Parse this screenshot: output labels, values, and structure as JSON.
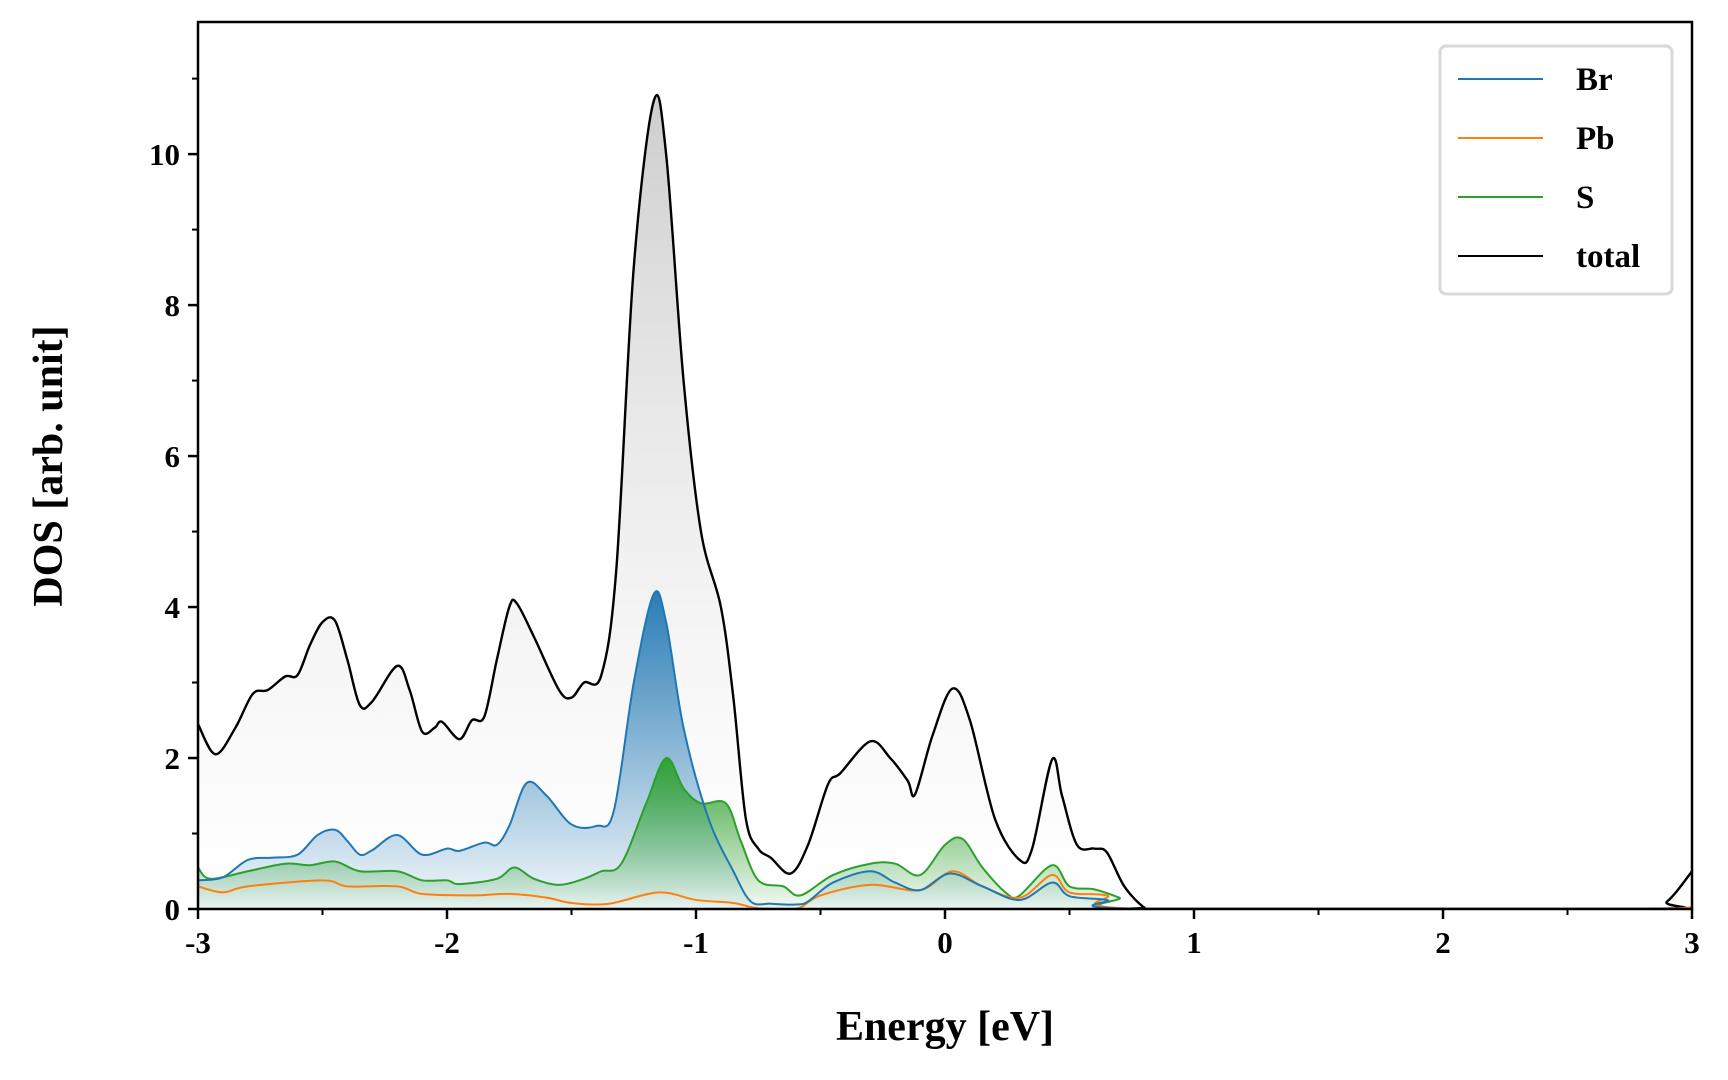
{
  "chart_data": {
    "type": "line",
    "title": "",
    "xlabel": "Energy [eV]",
    "ylabel": "DOS [arb. unit]",
    "xlim": [
      -3,
      3
    ],
    "ylim": [
      0,
      11.75
    ],
    "xticks": [
      -3,
      -2,
      -1,
      0,
      1,
      2,
      3
    ],
    "xtick_labels": [
      "-3",
      "-2",
      "-1",
      "0",
      "1",
      "2",
      "3"
    ],
    "xminor": [
      -2.5,
      -1.5,
      -0.5,
      0.5,
      1.5,
      2.5
    ],
    "yticks": [
      0,
      2,
      4,
      6,
      8,
      10
    ],
    "ytick_labels": [
      "0",
      "2",
      "4",
      "6",
      "8",
      "10"
    ],
    "yminor": [
      1,
      3,
      5,
      7,
      9,
      11
    ],
    "grid": false,
    "legend_position": "top-right",
    "series": [
      {
        "name": "Br",
        "color": "#1f77b4",
        "fill": true,
        "x": [
          -3,
          -2.9,
          -2.8,
          -2.7,
          -2.6,
          -2.52,
          -2.45,
          -2.4,
          -2.35,
          -2.3,
          -2.2,
          -2.1,
          -2.0,
          -1.95,
          -1.85,
          -1.8,
          -1.75,
          -1.68,
          -1.6,
          -1.5,
          -1.4,
          -1.33,
          -1.25,
          -1.17,
          -1.12,
          -1.05,
          -0.95,
          -0.85,
          -0.78,
          -0.7,
          -0.6,
          -0.55,
          -0.45,
          -0.3,
          -0.2,
          -0.1,
          0.02,
          0.15,
          0.3,
          0.43,
          0.5,
          0.65,
          0.8,
          3
        ],
        "y": [
          0.38,
          0.42,
          0.65,
          0.68,
          0.72,
          0.98,
          1.05,
          0.9,
          0.72,
          0.78,
          0.98,
          0.72,
          0.8,
          0.77,
          0.88,
          0.85,
          1.1,
          1.67,
          1.5,
          1.12,
          1.1,
          1.3,
          3.0,
          4.17,
          3.8,
          2.4,
          1.2,
          0.5,
          0.1,
          0.07,
          0.06,
          0.1,
          0.35,
          0.5,
          0.35,
          0.25,
          0.47,
          0.3,
          0.12,
          0.35,
          0.17,
          0.12,
          0,
          0
        ]
      },
      {
        "name": "Pb",
        "color": "#ff7f0e",
        "fill": false,
        "x": [
          -3,
          -2.9,
          -2.8,
          -2.5,
          -2.4,
          -2.2,
          -2.1,
          -1.9,
          -1.75,
          -1.6,
          -1.5,
          -1.35,
          -1.15,
          -1.0,
          -0.85,
          -0.75,
          -0.6,
          -0.5,
          -0.3,
          -0.1,
          0.03,
          0.15,
          0.3,
          0.43,
          0.5,
          0.65,
          0.8,
          2.85,
          3
        ],
        "y": [
          0.3,
          0.22,
          0.3,
          0.38,
          0.3,
          0.3,
          0.2,
          0.18,
          0.2,
          0.15,
          0.08,
          0.07,
          0.22,
          0.12,
          0.08,
          0.01,
          0,
          0.18,
          0.32,
          0.25,
          0.5,
          0.3,
          0.15,
          0.45,
          0.22,
          0.18,
          0,
          0,
          0.15
        ]
      },
      {
        "name": "S",
        "color": "#2ca02c",
        "fill": true,
        "x": [
          -3,
          -2.95,
          -2.8,
          -2.65,
          -2.55,
          -2.45,
          -2.35,
          -2.2,
          -2.1,
          -2.0,
          -1.95,
          -1.8,
          -1.73,
          -1.65,
          -1.55,
          -1.45,
          -1.38,
          -1.3,
          -1.2,
          -1.12,
          -1.05,
          -0.98,
          -0.88,
          -0.82,
          -0.75,
          -0.65,
          -0.58,
          -0.45,
          -0.3,
          -0.2,
          -0.1,
          0.0,
          0.07,
          0.15,
          0.25,
          0.3,
          0.43,
          0.5,
          0.6,
          0.7,
          0.8,
          2.9,
          3
        ],
        "y": [
          0.55,
          0.4,
          0.5,
          0.6,
          0.58,
          0.63,
          0.5,
          0.5,
          0.38,
          0.38,
          0.33,
          0.4,
          0.55,
          0.4,
          0.32,
          0.4,
          0.5,
          0.6,
          1.4,
          2.0,
          1.6,
          1.4,
          1.4,
          0.9,
          0.38,
          0.3,
          0.18,
          0.45,
          0.6,
          0.6,
          0.45,
          0.85,
          0.93,
          0.55,
          0.2,
          0.18,
          0.58,
          0.3,
          0.26,
          0.15,
          0,
          0,
          0.03
        ]
      },
      {
        "name": "total",
        "color": "#000000",
        "fill": true,
        "x": [
          -3,
          -2.93,
          -2.85,
          -2.78,
          -2.72,
          -2.65,
          -2.6,
          -2.55,
          -2.5,
          -2.45,
          -2.4,
          -2.35,
          -2.3,
          -2.2,
          -2.15,
          -2.1,
          -2.05,
          -2.02,
          -1.95,
          -1.9,
          -1.85,
          -1.8,
          -1.75,
          -1.72,
          -1.65,
          -1.55,
          -1.5,
          -1.45,
          -1.38,
          -1.32,
          -1.25,
          -1.17,
          -1.12,
          -1.05,
          -0.98,
          -0.9,
          -0.85,
          -0.8,
          -0.75,
          -0.7,
          -0.62,
          -0.55,
          -0.47,
          -0.42,
          -0.3,
          -0.22,
          -0.15,
          -0.12,
          -0.05,
          0.03,
          0.1,
          0.2,
          0.3,
          0.35,
          0.43,
          0.47,
          0.53,
          0.6,
          0.65,
          0.72,
          0.8,
          0.85,
          2.8,
          2.9,
          3.0
        ],
        "y": [
          2.45,
          2.05,
          2.4,
          2.85,
          2.9,
          3.08,
          3.1,
          3.5,
          3.8,
          3.82,
          3.3,
          2.7,
          2.75,
          3.22,
          2.9,
          2.35,
          2.4,
          2.48,
          2.25,
          2.5,
          2.55,
          3.3,
          4.0,
          4.05,
          3.6,
          2.9,
          2.8,
          3.0,
          3.1,
          4.5,
          8.5,
          10.7,
          10.0,
          7.0,
          5.0,
          4.0,
          2.8,
          1.2,
          0.8,
          0.68,
          0.47,
          0.85,
          1.65,
          1.8,
          2.22,
          2.0,
          1.7,
          1.52,
          2.3,
          2.92,
          2.5,
          1.2,
          0.65,
          0.8,
          1.98,
          1.5,
          0.85,
          0.8,
          0.75,
          0.3,
          0.02,
          0,
          0,
          0.1,
          0.5
        ]
      }
    ]
  }
}
